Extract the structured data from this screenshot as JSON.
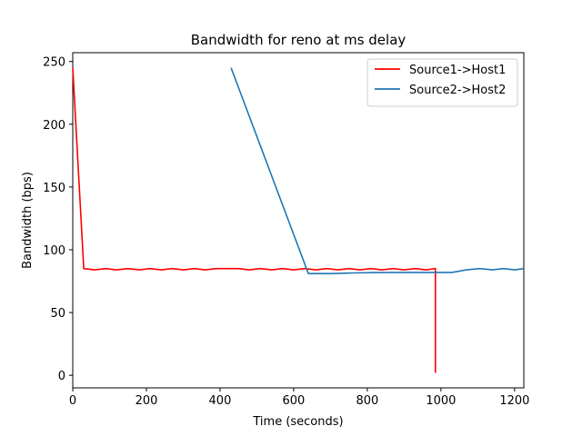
{
  "chart_data": {
    "type": "line",
    "title": "Bandwidth for reno at ms delay",
    "xlabel": "Time (seconds)",
    "ylabel": "Bandwidth (bps)",
    "xlim": [
      0,
      1225
    ],
    "ylim": [
      -10,
      257
    ],
    "xticks": [
      0,
      200,
      400,
      600,
      800,
      1000,
      1200
    ],
    "yticks": [
      0,
      50,
      100,
      150,
      200,
      250
    ],
    "grid": false,
    "legend_position": "top-right",
    "series": [
      {
        "name": "Source1->Host1",
        "color": "#ff0000",
        "x": [
          0,
          30,
          60,
          90,
          120,
          150,
          180,
          210,
          240,
          270,
          300,
          330,
          360,
          390,
          420,
          450,
          480,
          510,
          540,
          570,
          600,
          630,
          660,
          690,
          720,
          750,
          780,
          810,
          840,
          870,
          900,
          930,
          960,
          985,
          985
        ],
        "y": [
          245,
          85,
          84,
          85,
          84,
          85,
          84,
          85,
          84,
          85,
          84,
          85,
          84,
          85,
          85,
          85,
          84,
          85,
          84,
          85,
          84,
          85,
          84,
          85,
          84,
          85,
          84,
          85,
          84,
          85,
          84,
          85,
          84,
          85,
          2
        ]
      },
      {
        "name": "Source2->Host2",
        "color": "#1f77b4",
        "x": [
          430,
          640,
          700,
          760,
          820,
          880,
          940,
          985,
          1030,
          1070,
          1105,
          1140,
          1170,
          1200,
          1225
        ],
        "y": [
          245,
          81,
          81,
          81.5,
          81.8,
          82,
          82,
          82,
          82,
          84,
          85,
          84,
          85,
          84,
          85
        ]
      }
    ]
  }
}
